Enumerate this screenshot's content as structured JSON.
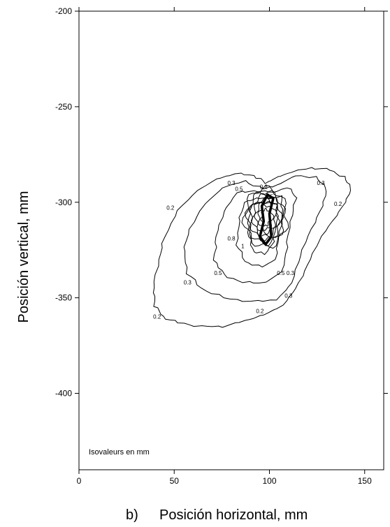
{
  "chart_data": {
    "type": "contour",
    "xlabel": "Posición horizontal, mm",
    "xlabel_prefix": "b)",
    "ylabel": "Posición vertical, mm",
    "annotation": "Isovaleurs en mm",
    "xlim": [
      0,
      160
    ],
    "ylim": [
      -440,
      -200
    ],
    "xticks": [
      0,
      50,
      100,
      150
    ],
    "yticks": [
      -200,
      -250,
      -300,
      -350,
      -400
    ],
    "grid": false,
    "contour_levels": [
      0.2,
      0.3,
      0.5,
      0.8,
      1
    ],
    "contour_labels": [
      {
        "text": "0.2",
        "x": 48,
        "y": -304
      },
      {
        "text": "0.2",
        "x": 41,
        "y": -361
      },
      {
        "text": "0.2",
        "x": 95,
        "y": -358
      },
      {
        "text": "0.2",
        "x": 136,
        "y": -302
      },
      {
        "text": "0.2",
        "x": 97,
        "y": -293
      },
      {
        "text": "0.3",
        "x": 80,
        "y": -291
      },
      {
        "text": "0.3",
        "x": 57,
        "y": -343
      },
      {
        "text": "0.3",
        "x": 127,
        "y": -291
      },
      {
        "text": "0.3",
        "x": 111,
        "y": -338
      },
      {
        "text": "0.3",
        "x": 110,
        "y": -350
      },
      {
        "text": "0.5",
        "x": 84,
        "y": -294
      },
      {
        "text": "0.5",
        "x": 73,
        "y": -338
      },
      {
        "text": "0.5",
        "x": 100,
        "y": -298
      },
      {
        "text": "0.5",
        "x": 106,
        "y": -338
      },
      {
        "text": "0.8",
        "x": 80,
        "y": -320
      },
      {
        "text": "1",
        "x": 86,
        "y": -324
      }
    ],
    "contours": [
      {
        "level": 0.2,
        "points": [
          [
            104,
            -287
          ],
          [
            112,
            -284
          ],
          [
            122,
            -282
          ],
          [
            132,
            -283
          ],
          [
            139,
            -287
          ],
          [
            143,
            -292
          ],
          [
            140,
            -300
          ],
          [
            133,
            -310
          ],
          [
            126,
            -320
          ],
          [
            120,
            -333
          ],
          [
            114,
            -345
          ],
          [
            107,
            -354
          ],
          [
            97,
            -359
          ],
          [
            87,
            -362
          ],
          [
            76,
            -365
          ],
          [
            64,
            -365
          ],
          [
            52,
            -363
          ],
          [
            44,
            -360
          ],
          [
            40,
            -354
          ],
          [
            39,
            -345
          ],
          [
            42,
            -330
          ],
          [
            45,
            -318
          ],
          [
            52,
            -304
          ],
          [
            62,
            -294
          ],
          [
            72,
            -288
          ],
          [
            82,
            -285
          ],
          [
            92,
            -286
          ],
          [
            98,
            -290
          ]
        ]
      },
      {
        "level": 0.3,
        "points": [
          [
            104,
            -291
          ],
          [
            114,
            -286
          ],
          [
            124,
            -287
          ],
          [
            130,
            -292
          ],
          [
            128,
            -302
          ],
          [
            122,
            -314
          ],
          [
            116,
            -328
          ],
          [
            112,
            -342
          ],
          [
            104,
            -351
          ],
          [
            90,
            -352
          ],
          [
            76,
            -350
          ],
          [
            64,
            -345
          ],
          [
            57,
            -337
          ],
          [
            55,
            -326
          ],
          [
            58,
            -314
          ],
          [
            66,
            -301
          ],
          [
            76,
            -292
          ],
          [
            87,
            -289
          ],
          [
            97,
            -293
          ]
        ]
      },
      {
        "level": 0.5,
        "points": [
          [
            102,
            -295
          ],
          [
            110,
            -292
          ],
          [
            114,
            -298
          ],
          [
            111,
            -310
          ],
          [
            109,
            -324
          ],
          [
            107,
            -336
          ],
          [
            98,
            -342
          ],
          [
            86,
            -342
          ],
          [
            76,
            -338
          ],
          [
            71,
            -330
          ],
          [
            72,
            -318
          ],
          [
            76,
            -305
          ],
          [
            83,
            -295
          ],
          [
            92,
            -294
          ]
        ]
      },
      {
        "level": 0.8,
        "points": [
          [
            100,
            -298
          ],
          [
            106,
            -297
          ],
          [
            107,
            -306
          ],
          [
            105,
            -318
          ],
          [
            103,
            -330
          ],
          [
            96,
            -334
          ],
          [
            87,
            -331
          ],
          [
            83,
            -322
          ],
          [
            84,
            -310
          ],
          [
            87,
            -300
          ],
          [
            93,
            -298
          ]
        ]
      },
      {
        "level": 1,
        "points": [
          [
            99,
            -300
          ],
          [
            104,
            -301
          ],
          [
            104,
            -310
          ],
          [
            102,
            -321
          ],
          [
            98,
            -327
          ],
          [
            92,
            -326
          ],
          [
            89,
            -318
          ],
          [
            89,
            -308
          ],
          [
            91,
            -301
          ]
        ]
      }
    ]
  }
}
